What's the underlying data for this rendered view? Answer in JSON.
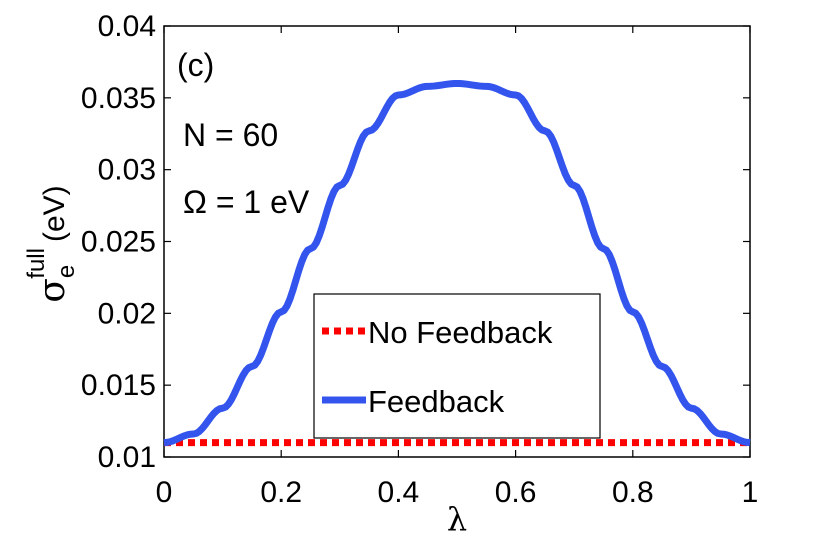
{
  "chart_data": {
    "type": "line",
    "panel_label": "(c)",
    "annotations": [
      "N = 60",
      "Ω = 1 eV"
    ],
    "xlabel": "λ",
    "ylabel": {
      "symbol": "σ",
      "sub": "e",
      "sup": "full",
      "unit": "(eV)"
    },
    "xlim": [
      0,
      1
    ],
    "ylim": [
      0.01,
      0.04
    ],
    "xticks": [
      0,
      0.2,
      0.4,
      0.6,
      0.8,
      1
    ],
    "xtick_labels": [
      "0",
      "0.2",
      "0.4",
      "0.6",
      "0.8",
      "1"
    ],
    "yticks": [
      0.01,
      0.015,
      0.02,
      0.025,
      0.03,
      0.035,
      0.04
    ],
    "ytick_labels": [
      "0.01",
      "0.015",
      "0.02",
      "0.025",
      "0.03",
      "0.035",
      "0.04"
    ],
    "legend_position": "lower-center",
    "series": [
      {
        "name": "No Feedback",
        "color": "#ff0000",
        "style": "dotted",
        "x": [
          0,
          0.1,
          0.2,
          0.3,
          0.4,
          0.5,
          0.6,
          0.7,
          0.8,
          0.9,
          1.0
        ],
        "y": [
          0.011,
          0.011,
          0.011,
          0.011,
          0.011,
          0.011,
          0.011,
          0.011,
          0.011,
          0.011,
          0.011
        ]
      },
      {
        "name": "Feedback",
        "color": "#3355ee",
        "style": "solid",
        "x": [
          0,
          0.05,
          0.1,
          0.15,
          0.2,
          0.25,
          0.3,
          0.35,
          0.4,
          0.45,
          0.5,
          0.55,
          0.6,
          0.65,
          0.7,
          0.75,
          0.8,
          0.85,
          0.9,
          0.95,
          1.0
        ],
        "y": [
          0.011,
          0.0116,
          0.0134,
          0.0163,
          0.0201,
          0.0245,
          0.0289,
          0.0327,
          0.0352,
          0.0358,
          0.036,
          0.0358,
          0.0352,
          0.0327,
          0.0289,
          0.0245,
          0.0201,
          0.0163,
          0.0134,
          0.0116,
          0.011
        ]
      }
    ]
  }
}
